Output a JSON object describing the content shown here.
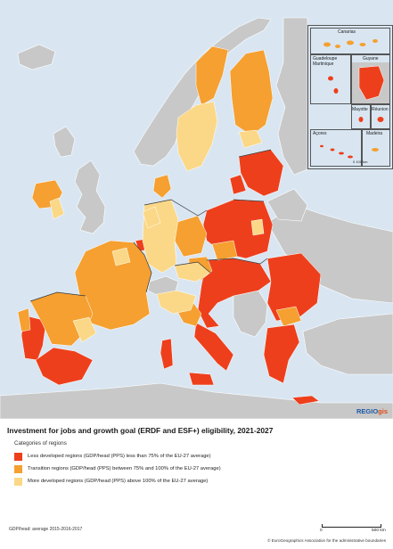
{
  "title": "Investment for jobs and growth goal (ERDF and ESF+) eligibility, 2021-2027",
  "legend": {
    "header": "Categories of regions",
    "items": [
      {
        "label": "Less developed regions (GDP/head (PPS) less than 75% of the EU-27 average)",
        "color": "#ee3f1c"
      },
      {
        "label": "Transition regions (GDP/head (PPS) between 75% and 100% of the EU-27 average)",
        "color": "#f5a030"
      },
      {
        "label": "More developed regions (GDP/head (PPS) above 100% of the EU-27 average)",
        "color": "#fbd888"
      }
    ]
  },
  "colors": {
    "sea": "#d9e6f2",
    "non_eu": "#c8c8c8",
    "less_developed": "#ee3f1c",
    "transition": "#f5a030",
    "more_developed": "#fbd888"
  },
  "insets": {
    "canarias": "Canarias",
    "guadeloupe_martinique": "Guadeloupe\nMartinique",
    "guyane": "Guyane",
    "mayotte": "Mayotte",
    "reunion": "Réunion",
    "acores": "Açores",
    "madeira": "Madeira",
    "inset_scale": "0   100 km"
  },
  "branding": {
    "regio": "REGIO",
    "gis": "gis"
  },
  "footnote": "GDP/head: average 2015-2016-2017",
  "scale": {
    "zero": "0",
    "end": "500 km"
  },
  "copyright": "© EuroGeographics Association for the administrative boundaries"
}
